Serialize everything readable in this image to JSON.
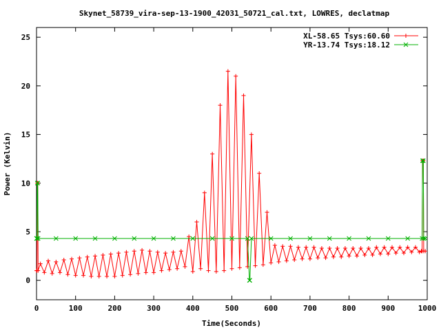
{
  "chart_data": {
    "type": "line",
    "title": "Skynet_58739_vira-sep-13-1900_42031_50721_cal.txt, LOWRES, declatmap",
    "xlabel": "Time(Seconds)",
    "ylabel": "Power (Kelvin)",
    "xlim": [
      0,
      1000
    ],
    "ylim": [
      -2,
      26
    ],
    "xticks": [
      "0",
      "100",
      "200",
      "300",
      "400",
      "500",
      "600",
      "700",
      "800",
      "900",
      "1000"
    ],
    "yticks": [
      "0",
      "5",
      "10",
      "15",
      "20",
      "25"
    ],
    "grid": false,
    "legend_position": "top-right",
    "series": [
      {
        "name": "XL-58.65 Tsys:60.60",
        "color": "#ff0000",
        "marker": "+",
        "points": [
          [
            0,
            1.0
          ],
          [
            1,
            1.0
          ],
          [
            2,
            10.0
          ],
          [
            3,
            10.0
          ],
          [
            4,
            1.0
          ],
          [
            10,
            1.7
          ],
          [
            20,
            0.8
          ],
          [
            30,
            2.0
          ],
          [
            40,
            0.7
          ],
          [
            50,
            1.9
          ],
          [
            60,
            0.8
          ],
          [
            70,
            2.1
          ],
          [
            80,
            0.6
          ],
          [
            90,
            2.2
          ],
          [
            100,
            0.5
          ],
          [
            110,
            2.3
          ],
          [
            120,
            0.5
          ],
          [
            130,
            2.4
          ],
          [
            140,
            0.4
          ],
          [
            150,
            2.5
          ],
          [
            160,
            0.4
          ],
          [
            170,
            2.6
          ],
          [
            180,
            0.4
          ],
          [
            190,
            2.7
          ],
          [
            200,
            0.4
          ],
          [
            210,
            2.8
          ],
          [
            220,
            0.5
          ],
          [
            230,
            2.9
          ],
          [
            240,
            0.6
          ],
          [
            250,
            3.0
          ],
          [
            260,
            0.7
          ],
          [
            270,
            3.1
          ],
          [
            280,
            0.8
          ],
          [
            290,
            3.0
          ],
          [
            300,
            0.8
          ],
          [
            310,
            2.9
          ],
          [
            320,
            1.0
          ],
          [
            330,
            2.8
          ],
          [
            340,
            1.1
          ],
          [
            350,
            2.9
          ],
          [
            360,
            1.2
          ],
          [
            370,
            3.0
          ],
          [
            380,
            1.4
          ],
          [
            390,
            4.5
          ],
          [
            400,
            0.9
          ],
          [
            410,
            6.0
          ],
          [
            420,
            1.2
          ],
          [
            430,
            9.0
          ],
          [
            440,
            1.0
          ],
          [
            450,
            13.0
          ],
          [
            460,
            0.9
          ],
          [
            470,
            18.0
          ],
          [
            480,
            1.0
          ],
          [
            490,
            21.5
          ],
          [
            500,
            1.2
          ],
          [
            510,
            21.0
          ],
          [
            520,
            1.3
          ],
          [
            530,
            19.0
          ],
          [
            540,
            1.4
          ],
          [
            550,
            15.0
          ],
          [
            560,
            1.5
          ],
          [
            570,
            11.0
          ],
          [
            580,
            1.6
          ],
          [
            590,
            7.0
          ],
          [
            600,
            1.8
          ],
          [
            610,
            3.6
          ],
          [
            620,
            1.9
          ],
          [
            630,
            3.5
          ],
          [
            640,
            2.0
          ],
          [
            650,
            3.5
          ],
          [
            660,
            2.1
          ],
          [
            670,
            3.4
          ],
          [
            680,
            2.2
          ],
          [
            690,
            3.4
          ],
          [
            700,
            2.2
          ],
          [
            710,
            3.4
          ],
          [
            720,
            2.3
          ],
          [
            730,
            3.3
          ],
          [
            740,
            2.3
          ],
          [
            750,
            3.3
          ],
          [
            760,
            2.4
          ],
          [
            770,
            3.3
          ],
          [
            780,
            2.4
          ],
          [
            790,
            3.3
          ],
          [
            800,
            2.5
          ],
          [
            810,
            3.3
          ],
          [
            820,
            2.5
          ],
          [
            830,
            3.3
          ],
          [
            840,
            2.6
          ],
          [
            850,
            3.3
          ],
          [
            860,
            2.6
          ],
          [
            870,
            3.4
          ],
          [
            880,
            2.7
          ],
          [
            890,
            3.4
          ],
          [
            900,
            2.7
          ],
          [
            910,
            3.4
          ],
          [
            920,
            2.8
          ],
          [
            930,
            3.4
          ],
          [
            940,
            2.8
          ],
          [
            950,
            3.4
          ],
          [
            960,
            2.9
          ],
          [
            970,
            3.4
          ],
          [
            980,
            2.9
          ],
          [
            985,
            3.0
          ],
          [
            987,
            3.0
          ],
          [
            988,
            12.3
          ],
          [
            990,
            12.3
          ],
          [
            991,
            3.0
          ],
          [
            995,
            3.0
          ]
        ]
      },
      {
        "name": "YR-13.74 Tsys:18.12",
        "color": "#00b000",
        "marker": "x",
        "points": [
          [
            0,
            4.3
          ],
          [
            1,
            4.3
          ],
          [
            2,
            10.0
          ],
          [
            3,
            10.0
          ],
          [
            4,
            4.3
          ],
          [
            50,
            4.3
          ],
          [
            100,
            4.3
          ],
          [
            150,
            4.3
          ],
          [
            200,
            4.3
          ],
          [
            250,
            4.3
          ],
          [
            300,
            4.3
          ],
          [
            350,
            4.3
          ],
          [
            400,
            4.3
          ],
          [
            450,
            4.3
          ],
          [
            500,
            4.3
          ],
          [
            540,
            4.3
          ],
          [
            545,
            0.0
          ],
          [
            546,
            0.0
          ],
          [
            550,
            4.3
          ],
          [
            600,
            4.3
          ],
          [
            650,
            4.3
          ],
          [
            700,
            4.3
          ],
          [
            750,
            4.3
          ],
          [
            800,
            4.3
          ],
          [
            850,
            4.3
          ],
          [
            900,
            4.3
          ],
          [
            950,
            4.3
          ],
          [
            987,
            4.3
          ],
          [
            988,
            12.3
          ],
          [
            990,
            12.3
          ],
          [
            991,
            4.3
          ],
          [
            995,
            4.3
          ]
        ]
      }
    ]
  }
}
